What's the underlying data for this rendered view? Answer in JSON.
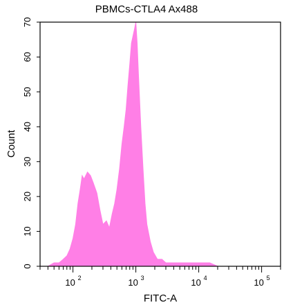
{
  "chart_data": {
    "type": "area",
    "title": "PBMCs-CTLA4 Ax488",
    "xlabel": "FITC-A",
    "ylabel": "Count",
    "x_scale": "log",
    "xlim": [
      30,
      200000
    ],
    "ylim": [
      0,
      70
    ],
    "grid": false,
    "fill_color": "#ff7fe6",
    "yticks": [
      0,
      10,
      20,
      30,
      40,
      50,
      60,
      70
    ],
    "xticks": [
      {
        "base": "10",
        "exp": "2",
        "value": 100
      },
      {
        "base": "10",
        "exp": "3",
        "value": 1000
      },
      {
        "base": "10",
        "exp": "4",
        "value": 10000
      },
      {
        "base": "10",
        "exp": "5",
        "value": 100000
      }
    ],
    "x": [
      30,
      40,
      50,
      60,
      70,
      80,
      90,
      100,
      110,
      120,
      130,
      140,
      150,
      170,
      190,
      210,
      240,
      270,
      300,
      340,
      380,
      420,
      460,
      500,
      550,
      600,
      650,
      700,
      750,
      800,
      850,
      900,
      950,
      1000,
      1050,
      1100,
      1200,
      1300,
      1400,
      1500,
      1700,
      1900,
      2200,
      2600,
      3000,
      4000,
      5000,
      7000,
      10000,
      15000,
      20000,
      30000,
      50000,
      100000,
      200000
    ],
    "y": [
      0,
      0,
      1,
      1,
      2,
      3,
      5,
      8,
      12,
      18,
      22,
      26,
      25,
      27,
      26,
      24,
      21,
      16,
      12,
      13,
      11,
      15,
      18,
      22,
      28,
      35,
      40,
      45,
      52,
      58,
      64,
      66,
      68,
      70,
      64,
      55,
      40,
      28,
      18,
      12,
      7,
      4,
      2,
      2,
      1,
      1,
      1,
      1,
      1,
      1,
      0,
      0,
      0,
      0,
      0
    ]
  }
}
